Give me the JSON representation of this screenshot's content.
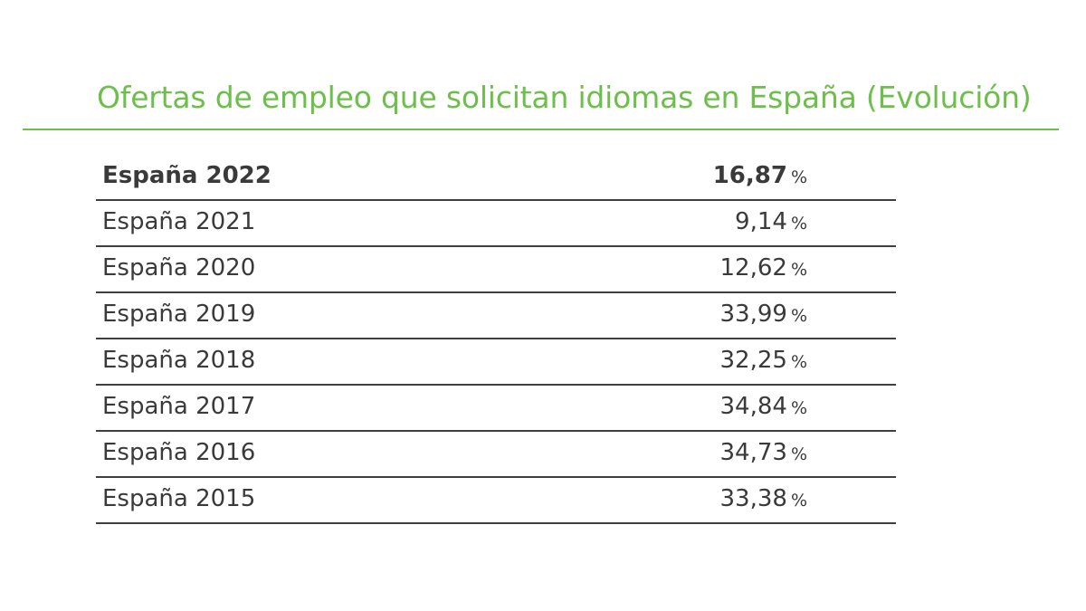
{
  "chart_data": {
    "type": "table",
    "title": "Ofertas de empleo que solicitan idiomas en España (Evolución)",
    "unit": "%",
    "categories": [
      "España 2022",
      "España 2021",
      "España 2020",
      "España 2019",
      "España 2018",
      "España 2017",
      "España 2016",
      "España 2015"
    ],
    "values": [
      16.87,
      9.14,
      12.62,
      33.99,
      32.25,
      34.84,
      34.73,
      33.38
    ],
    "value_labels": [
      "16,87",
      "9,14",
      "12,62",
      "33,99",
      "32,25",
      "34,84",
      "34,73",
      "33,38"
    ]
  },
  "colors": {
    "accent": "#6cbf4a",
    "text": "#3a3a3a",
    "rule": "#3f3f3f"
  }
}
